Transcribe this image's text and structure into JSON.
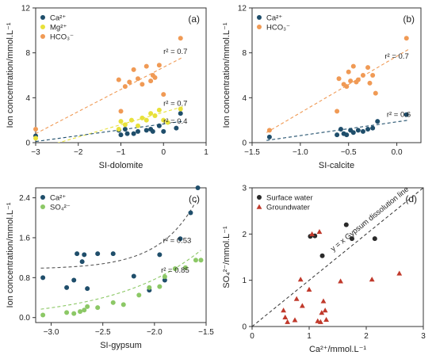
{
  "chart_data": [
    {
      "id": "a",
      "type": "scatter",
      "panel_label": "(a)",
      "xlabel": "SI-dolomite",
      "ylabel": "Ion concentration/mmol.L⁻¹",
      "xlim": [
        -3,
        1
      ],
      "ylim": [
        0,
        12
      ],
      "xticks": [
        -3,
        -2,
        -1,
        0,
        1
      ],
      "yticks": [
        0,
        4,
        8,
        12
      ],
      "legend_position": "top-left",
      "series": [
        {
          "name": "Ca²⁺",
          "color": "#1f4e6b",
          "marker": "circle",
          "x": [
            -3.0,
            -1.05,
            -1.0,
            -0.9,
            -0.85,
            -0.7,
            -0.6,
            -0.4,
            -0.3,
            -0.25,
            -0.1,
            0.0,
            0.3,
            0.4
          ],
          "y": [
            0.6,
            1.1,
            0.7,
            1.2,
            0.8,
            0.8,
            1.0,
            1.1,
            1.2,
            1.0,
            1.5,
            1.0,
            1.3,
            2.6
          ]
        },
        {
          "name": "Mg²⁺",
          "color": "#e8e13a",
          "marker": "circle",
          "x": [
            -3.0,
            -1.05,
            -1.0,
            -0.9,
            -0.75,
            -0.6,
            -0.5,
            -0.4,
            -0.3,
            -0.2,
            -0.1,
            0.0,
            0.1,
            0.4
          ],
          "y": [
            0.4,
            1.2,
            1.9,
            1.6,
            2.0,
            1.5,
            2.2,
            2.0,
            2.6,
            2.4,
            2.9,
            2.0,
            1.8,
            3.0
          ]
        },
        {
          "name": "HCO₃⁻",
          "color": "#f09a55",
          "marker": "circle",
          "x": [
            -3.0,
            -1.05,
            -1.0,
            -0.9,
            -0.8,
            -0.7,
            -0.6,
            -0.5,
            -0.4,
            -0.3,
            -0.25,
            -0.2,
            -0.1,
            0.0,
            0.4
          ],
          "y": [
            1.2,
            5.6,
            2.8,
            5.0,
            5.4,
            6.5,
            5.7,
            5.2,
            6.8,
            5.5,
            6.0,
            5.8,
            6.9,
            4.3,
            9.3
          ]
        }
      ],
      "trend_lines": [
        {
          "color": "#f09a55",
          "x": [
            -3,
            0.45
          ],
          "y": [
            0.8,
            7.6
          ],
          "label": "r² = 0.7"
        },
        {
          "color": "#e8e13a",
          "x": [
            -3,
            0.45
          ],
          "y": [
            -0.6,
            3.2
          ],
          "label": "r² = 0.7"
        },
        {
          "color": "#1f4e6b",
          "x": [
            -3,
            0.45
          ],
          "y": [
            0.1,
            1.9
          ],
          "label": "r² = 0.4"
        }
      ]
    },
    {
      "id": "b",
      "type": "scatter",
      "panel_label": "(b)",
      "xlabel": "SI-calcite",
      "ylabel": "Ion concentration/mmol.L⁻¹",
      "xlim": [
        -1.5,
        0.25
      ],
      "ylim": [
        0,
        12
      ],
      "xticks": [
        -1.5,
        -1.0,
        -0.5,
        0.0
      ],
      "yticks": [
        0,
        4,
        8,
        12
      ],
      "legend_position": "top-left",
      "series": [
        {
          "name": "Ca²⁺",
          "color": "#1f4e6b",
          "marker": "circle",
          "x": [
            -1.32,
            -0.62,
            -0.58,
            -0.55,
            -0.52,
            -0.48,
            -0.45,
            -0.4,
            -0.35,
            -0.3,
            -0.25,
            -0.2,
            0.1
          ],
          "y": [
            0.5,
            0.7,
            1.2,
            0.8,
            0.7,
            1.1,
            0.9,
            1.1,
            1.0,
            1.2,
            1.3,
            1.9,
            2.5
          ]
        },
        {
          "name": "HCO₃⁻",
          "color": "#f09a55",
          "marker": "circle",
          "x": [
            -1.32,
            -0.62,
            -0.6,
            -0.55,
            -0.52,
            -0.5,
            -0.48,
            -0.45,
            -0.42,
            -0.4,
            -0.35,
            -0.3,
            -0.28,
            -0.25,
            -0.22,
            0.1
          ],
          "y": [
            1.1,
            2.8,
            5.7,
            5.2,
            5.0,
            6.3,
            5.5,
            6.8,
            5.4,
            5.6,
            6.0,
            6.7,
            5.3,
            6.0,
            4.4,
            9.3
          ]
        }
      ],
      "trend_lines": [
        {
          "color": "#f09a55",
          "x": [
            -1.35,
            0.12
          ],
          "y": [
            0.9,
            8.3
          ],
          "label": "r² = 0.7"
        },
        {
          "color": "#1f4e6b",
          "x": [
            -1.35,
            0.12
          ],
          "y": [
            0.2,
            2.0
          ],
          "label": "r² = 0.6"
        }
      ]
    },
    {
      "id": "c",
      "type": "scatter",
      "panel_label": "(c)",
      "xlabel": "SI-gypsum",
      "ylabel": "Ion concentration/mmol.L⁻¹",
      "xlim": [
        -3.15,
        -1.5
      ],
      "ylim": [
        -0.1,
        2.6
      ],
      "xticks": [
        -3.0,
        -2.5,
        -2.0,
        -1.5
      ],
      "yticks": [
        0.0,
        0.8,
        1.6,
        2.4
      ],
      "legend_position": "top-left",
      "series": [
        {
          "name": "Ca²⁺",
          "color": "#1f4e6b",
          "marker": "circle",
          "x": [
            -3.08,
            -2.85,
            -2.78,
            -2.75,
            -2.7,
            -2.68,
            -2.65,
            -2.55,
            -2.4,
            -2.2,
            -2.05,
            -1.95,
            -1.9,
            -1.75,
            -1.65,
            -1.58
          ],
          "y": [
            0.8,
            0.6,
            0.75,
            1.28,
            1.12,
            1.26,
            0.58,
            1.28,
            1.28,
            0.83,
            0.55,
            1.26,
            0.75,
            1.58,
            2.1,
            2.6
          ]
        },
        {
          "name": "SO₄²⁻",
          "color": "#8cc866",
          "marker": "circle",
          "x": [
            -3.08,
            -2.85,
            -2.78,
            -2.72,
            -2.68,
            -2.65,
            -2.55,
            -2.4,
            -2.3,
            -2.15,
            -2.05,
            -1.95,
            -1.9,
            -1.8,
            -1.7,
            -1.6,
            -1.55
          ],
          "y": [
            0.05,
            0.1,
            0.08,
            0.12,
            0.15,
            0.22,
            0.2,
            0.3,
            0.26,
            0.45,
            0.6,
            0.62,
            0.82,
            0.98,
            1.0,
            1.15,
            1.15
          ]
        }
      ],
      "trend_lines": [
        {
          "color": "#555555",
          "type": "exponential",
          "x_start": -3.1,
          "x_end": -1.58,
          "base": 0.97,
          "amp": 1.43,
          "rate": 2.8,
          "label": "r² = 0.53"
        },
        {
          "color": "#8cc866",
          "type": "exponential",
          "x_start": -3.1,
          "x_end": -1.55,
          "base": -0.05,
          "amp": 1.4,
          "rate": 1.2,
          "label": "r² = 0.85"
        }
      ]
    },
    {
      "id": "d",
      "type": "scatter",
      "panel_label": "(d)",
      "xlabel": "Ca²⁺/mmol.L⁻¹",
      "ylabel": "SO₄²⁻/mmol.L⁻¹",
      "xlim": [
        0,
        3
      ],
      "ylim": [
        0,
        3
      ],
      "xticks": [
        0,
        1,
        2,
        3
      ],
      "yticks": [
        0,
        1,
        2,
        3
      ],
      "legend_position": "top-left",
      "series": [
        {
          "name": "Surface water",
          "color": "#2a2a2a",
          "marker": "circle",
          "x": [
            1.02,
            1.1,
            1.23,
            1.65,
            1.75,
            2.15
          ],
          "y": [
            1.95,
            1.96,
            1.53,
            2.2,
            1.9,
            1.9
          ]
        },
        {
          "name": "Groundwater",
          "color": "#c0392b",
          "marker": "triangle",
          "x": [
            0.55,
            0.58,
            0.62,
            0.75,
            0.78,
            0.85,
            0.88,
            1.0,
            1.05,
            1.15,
            1.18,
            1.2,
            1.22,
            1.25,
            1.28,
            1.3,
            1.55,
            2.1,
            2.58
          ],
          "y": [
            0.35,
            0.2,
            0.1,
            0.14,
            0.6,
            1.02,
            0.45,
            0.8,
            2.0,
            0.12,
            2.05,
            0.1,
            0.3,
            0.55,
            0.35,
            0.15,
            0.98,
            1.02,
            1.15
          ]
        }
      ],
      "reference_line": {
        "x": [
          0,
          3
        ],
        "y": [
          0,
          3
        ],
        "label": "y = x  Gypsum dissolution line",
        "color": "#333333"
      }
    }
  ]
}
